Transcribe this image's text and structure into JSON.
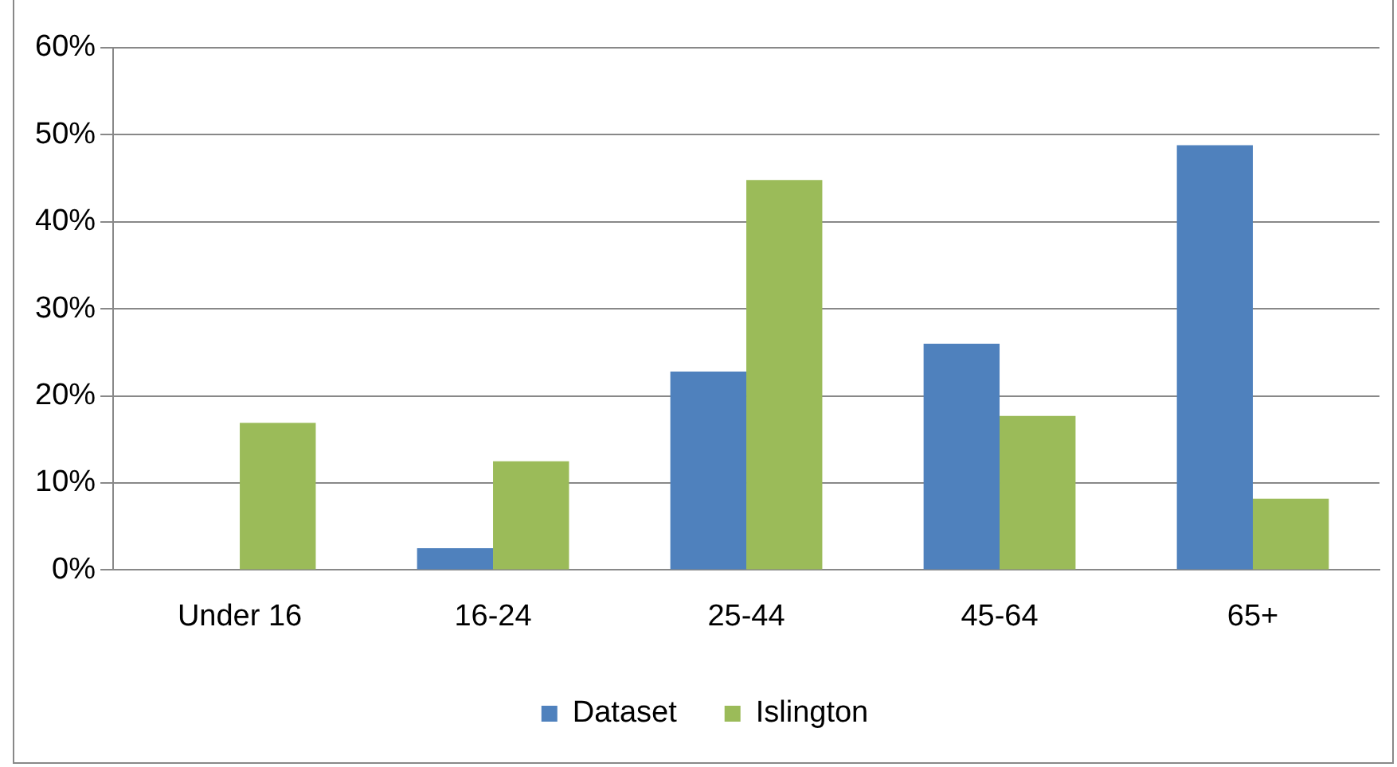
{
  "chart_data": {
    "type": "bar",
    "categories": [
      "Under 16",
      "16-24",
      "25-44",
      "45-64",
      "65+"
    ],
    "series": [
      {
        "name": "Dataset",
        "color": "#4f81bd",
        "values": [
          0,
          2.5,
          22.8,
          26.0,
          48.8
        ]
      },
      {
        "name": "Islington",
        "color": "#9bbb59",
        "values": [
          16.9,
          12.5,
          44.8,
          17.7,
          8.2
        ]
      }
    ],
    "ylim": [
      0,
      60
    ],
    "yticks": [
      {
        "value": 0,
        "label": "0%"
      },
      {
        "value": 10,
        "label": "10%"
      },
      {
        "value": 20,
        "label": "20%"
      },
      {
        "value": 30,
        "label": "30%"
      },
      {
        "value": 40,
        "label": "40%"
      },
      {
        "value": 50,
        "label": "50%"
      },
      {
        "value": 60,
        "label": "60%"
      }
    ],
    "grid": "y",
    "legend": "bottom"
  }
}
